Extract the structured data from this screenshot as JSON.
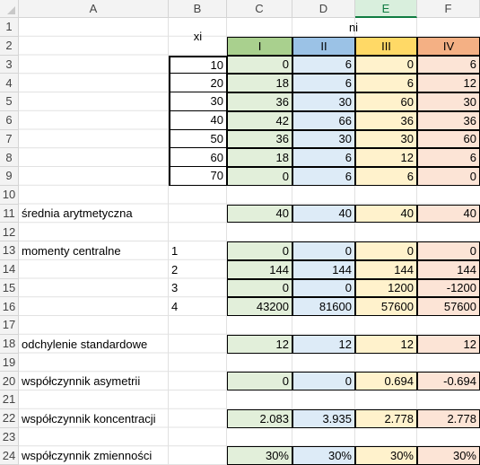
{
  "columns": [
    "A",
    "B",
    "C",
    "D",
    "E",
    "F"
  ],
  "selected_column": "E",
  "rows": [
    "1",
    "2",
    "3",
    "4",
    "5",
    "6",
    "7",
    "8",
    "9",
    "10",
    "11",
    "12",
    "13",
    "14",
    "15",
    "16",
    "17",
    "18",
    "19",
    "20",
    "21",
    "22",
    "23",
    "24"
  ],
  "header": {
    "xi_label": "xi",
    "ni_label": "ni",
    "groups": [
      "I",
      "II",
      "III",
      "IV"
    ]
  },
  "xi": [
    "10",
    "20",
    "30",
    "40",
    "50",
    "60",
    "70"
  ],
  "ni": [
    [
      "0",
      "6",
      "0",
      "6"
    ],
    [
      "18",
      "6",
      "6",
      "12"
    ],
    [
      "36",
      "30",
      "60",
      "30"
    ],
    [
      "42",
      "66",
      "36",
      "36"
    ],
    [
      "36",
      "30",
      "30",
      "60"
    ],
    [
      "18",
      "6",
      "12",
      "6"
    ],
    [
      "0",
      "6",
      "6",
      "0"
    ]
  ],
  "stats": {
    "mean": {
      "label": "średnia arytmetyczna",
      "values": [
        "40",
        "40",
        "40",
        "40"
      ]
    },
    "moments": {
      "label": "momenty centralne",
      "orders": [
        "1",
        "2",
        "3",
        "4"
      ],
      "values": [
        [
          "0",
          "0",
          "0",
          "0"
        ],
        [
          "144",
          "144",
          "144",
          "144"
        ],
        [
          "0",
          "0",
          "1200",
          "-1200"
        ],
        [
          "43200",
          "81600",
          "57600",
          "57600"
        ]
      ]
    },
    "std": {
      "label": "odchylenie standardowe",
      "values": [
        "12",
        "12",
        "12",
        "12"
      ]
    },
    "skew": {
      "label": "współczynnik asymetrii",
      "values": [
        "0",
        "0",
        "0.694",
        "-0.694"
      ]
    },
    "kurt": {
      "label": "współczynnik koncentracji",
      "values": [
        "2.083",
        "3.935",
        "2.778",
        "2.778"
      ]
    },
    "cv": {
      "label": "współczynnik zmienności",
      "values": [
        "30%",
        "30%",
        "30%",
        "30%"
      ]
    }
  },
  "colors": {
    "group_I_header": "#a9d08e",
    "group_I_fill": "#e2efda",
    "group_II_header": "#9bc2e6",
    "group_II_fill": "#ddebf7",
    "group_III_header": "#ffd966",
    "group_III_fill": "#fff2cc",
    "group_IV_header": "#f4b084",
    "group_IV_fill": "#fce4d6",
    "selected_header": "#107c41"
  }
}
